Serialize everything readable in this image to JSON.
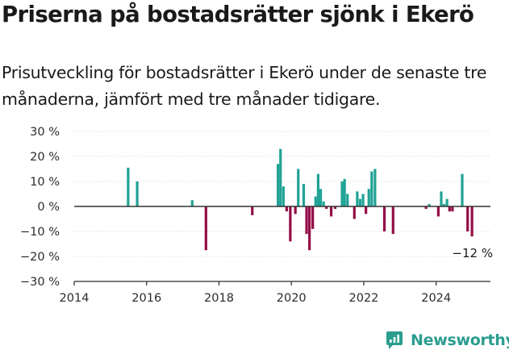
{
  "title": "Priserna på bostadsrätter sjönk i Ekerö",
  "subtitle": "Prisutveckling för bostadsrätter i Ekerö under de senaste tre månaderna, jämfört med tre månader tidigare.",
  "brand": {
    "name": "Newsworthy",
    "icon": "newsworthy-logo-icon"
  },
  "colors": {
    "positive": "#20a295",
    "negative": "#930d47",
    "axis": "#2b2b2b",
    "grid": "#d9d9d9",
    "zero": "#333333"
  },
  "chart_data": {
    "type": "bar",
    "title": "",
    "xlabel": "",
    "ylabel": "",
    "xlim": [
      2014,
      2025.5
    ],
    "ylim": [
      -30,
      30
    ],
    "x_ticks": [
      2014,
      2016,
      2018,
      2020,
      2022,
      2024
    ],
    "y_ticks": [
      -30,
      -20,
      -10,
      0,
      10,
      20,
      30
    ],
    "y_tick_labels": [
      "−30 %",
      "−20 %",
      "−10 %",
      "0 %",
      "10 %",
      "20 %",
      "30 %"
    ],
    "grid": "horizontal",
    "last_label": "−12 %",
    "series": [
      {
        "values": [
          {
            "x": 2015.49,
            "y": 15.5
          },
          {
            "x": 2015.74,
            "y": 10
          },
          {
            "x": 2017.26,
            "y": 2.5
          },
          {
            "x": 2017.64,
            "y": -17.5
          },
          {
            "x": 2018.92,
            "y": -3.5
          },
          {
            "x": 2019.63,
            "y": 17
          },
          {
            "x": 2019.7,
            "y": 23
          },
          {
            "x": 2019.78,
            "y": 8
          },
          {
            "x": 2019.87,
            "y": -2
          },
          {
            "x": 2019.97,
            "y": -14
          },
          {
            "x": 2020.11,
            "y": -3
          },
          {
            "x": 2020.19,
            "y": 15
          },
          {
            "x": 2020.34,
            "y": 9
          },
          {
            "x": 2020.42,
            "y": -11
          },
          {
            "x": 2020.5,
            "y": -17.5
          },
          {
            "x": 2020.59,
            "y": -9
          },
          {
            "x": 2020.67,
            "y": 4
          },
          {
            "x": 2020.74,
            "y": 13
          },
          {
            "x": 2020.81,
            "y": 7
          },
          {
            "x": 2020.89,
            "y": 2
          },
          {
            "x": 2020.97,
            "y": -1
          },
          {
            "x": 2021.1,
            "y": -4
          },
          {
            "x": 2021.21,
            "y": -1
          },
          {
            "x": 2021.4,
            "y": 10
          },
          {
            "x": 2021.47,
            "y": 11
          },
          {
            "x": 2021.55,
            "y": 5
          },
          {
            "x": 2021.74,
            "y": -5
          },
          {
            "x": 2021.82,
            "y": 6
          },
          {
            "x": 2021.9,
            "y": 3
          },
          {
            "x": 2021.98,
            "y": 5
          },
          {
            "x": 2022.06,
            "y": -3
          },
          {
            "x": 2022.14,
            "y": 7
          },
          {
            "x": 2022.22,
            "y": 14
          },
          {
            "x": 2022.31,
            "y": 15
          },
          {
            "x": 2022.57,
            "y": -10
          },
          {
            "x": 2022.81,
            "y": -11
          },
          {
            "x": 2023.72,
            "y": -1
          },
          {
            "x": 2023.81,
            "y": 1
          },
          {
            "x": 2024.06,
            "y": -4
          },
          {
            "x": 2024.14,
            "y": 6
          },
          {
            "x": 2024.22,
            "y": 1
          },
          {
            "x": 2024.3,
            "y": 3
          },
          {
            "x": 2024.37,
            "y": -2
          },
          {
            "x": 2024.45,
            "y": -2
          },
          {
            "x": 2024.72,
            "y": 13
          },
          {
            "x": 2024.87,
            "y": -10
          },
          {
            "x": 2024.99,
            "y": -12
          }
        ]
      }
    ]
  }
}
